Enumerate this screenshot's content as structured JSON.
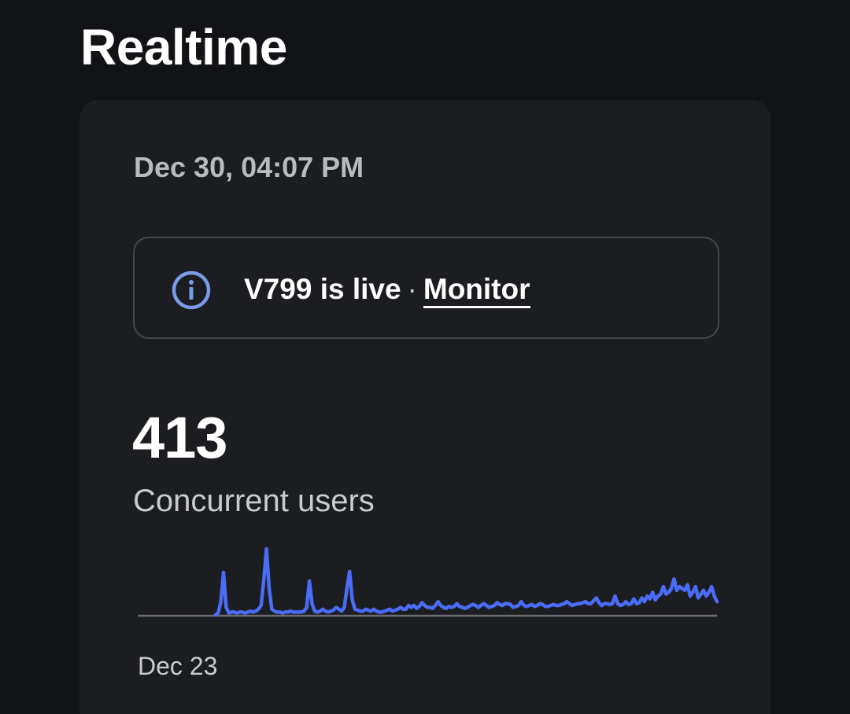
{
  "header": {
    "title": "Realtime"
  },
  "card": {
    "timestamp": "Dec 30, 04:07 PM",
    "banner": {
      "icon": "info-icon",
      "version_text": "V799 is live",
      "separator": "·",
      "link_label": "Monitor"
    },
    "metric": {
      "value": "413",
      "label": "Concurrent users"
    }
  },
  "colors": {
    "background": "#121316",
    "card": "#1c1d21",
    "accent_line": "#4a6cf7",
    "icon": "#7a9be8",
    "baseline": "#6b6d72"
  },
  "chart_data": {
    "type": "line",
    "x_start_label": "Dec 23",
    "grid": false,
    "series": [
      {
        "values": [
          0,
          0,
          0,
          0,
          0,
          0,
          0,
          0,
          0,
          0,
          0,
          0,
          0,
          0,
          0,
          0,
          0,
          0,
          0,
          0,
          0,
          0,
          0,
          0,
          0,
          0,
          0,
          0,
          0,
          0,
          2,
          14,
          45,
          8,
          2,
          3,
          3,
          2,
          3,
          3,
          2,
          3,
          4,
          3,
          4,
          6,
          10,
          36,
          70,
          28,
          6,
          4,
          3,
          3,
          2,
          3,
          3,
          4,
          3,
          3,
          3,
          3,
          4,
          8,
          36,
          12,
          4,
          3,
          4,
          6,
          4,
          3,
          4,
          5,
          8,
          6,
          4,
          8,
          28,
          46,
          16,
          6,
          5,
          4,
          4,
          6,
          5,
          4,
          6,
          4,
          3,
          3,
          4,
          5,
          6,
          4,
          5,
          6,
          8,
          6,
          6,
          10,
          8,
          10,
          7,
          9,
          13,
          10,
          8,
          8,
          7,
          10,
          14,
          10,
          8,
          7,
          9,
          8,
          9,
          12,
          9,
          8,
          7,
          8,
          10,
          11,
          10,
          8,
          10,
          12,
          10,
          8,
          9,
          10,
          13,
          11,
          10,
          12,
          12,
          11,
          8,
          9,
          10,
          14,
          10,
          9,
          10,
          11,
          9,
          10,
          12,
          11,
          9,
          9,
          10,
          11,
          10,
          10,
          11,
          12,
          14,
          12,
          10,
          11,
          12,
          12,
          13,
          14,
          12,
          12,
          15,
          18,
          13,
          10,
          12,
          12,
          11,
          12,
          20,
          12,
          10,
          11,
          14,
          11,
          12,
          17,
          12,
          13,
          18,
          14,
          20,
          17,
          24,
          16,
          20,
          22,
          30,
          22,
          24,
          28,
          38,
          26,
          30,
          28,
          26,
          32,
          20,
          24,
          30,
          18,
          22,
          26,
          20,
          24,
          30,
          20,
          14
        ]
      }
    ]
  }
}
